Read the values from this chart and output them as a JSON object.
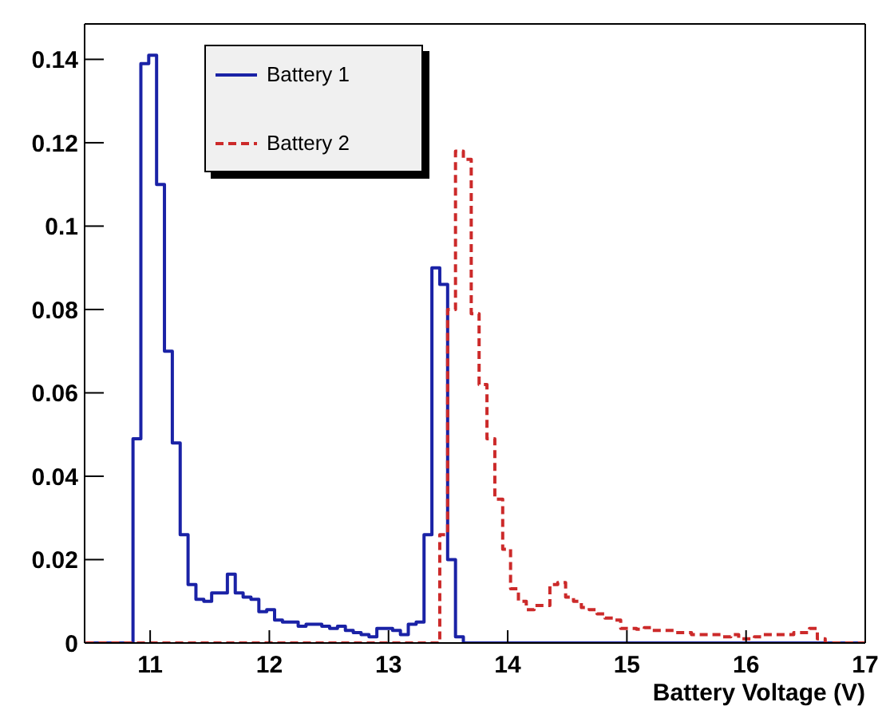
{
  "chart_data": {
    "type": "histogram",
    "xlabel": "Battery Voltage (V)",
    "bins": [
      10.46,
      10.526,
      10.592,
      10.658,
      10.724,
      10.79,
      10.856,
      10.922,
      10.988,
      11.054,
      11.12,
      11.186,
      11.252,
      11.318,
      11.384,
      11.45,
      11.516,
      11.582,
      11.648,
      11.714,
      11.78,
      11.846,
      11.912,
      11.978,
      12.044,
      12.11,
      12.176,
      12.242,
      12.308,
      12.374,
      12.44,
      12.506,
      12.572,
      12.638,
      12.704,
      12.77,
      12.836,
      12.902,
      12.968,
      13.034,
      13.1,
      13.166,
      13.232,
      13.298,
      13.364,
      13.43,
      13.496,
      13.562,
      13.628,
      13.694,
      13.76,
      13.826,
      13.892,
      13.958,
      14.024,
      14.09,
      14.156,
      14.222,
      14.288,
      14.354,
      14.42,
      14.486,
      14.552,
      14.618,
      14.684,
      14.75,
      14.816,
      14.882,
      14.948,
      15.014,
      15.08,
      15.146,
      15.212,
      15.278,
      15.344,
      15.41,
      15.476,
      15.542,
      15.608,
      15.674,
      15.74,
      15.806,
      15.872,
      15.938,
      16.004,
      16.07,
      16.136,
      16.202,
      16.268,
      16.334,
      16.4,
      16.466,
      16.532,
      16.598,
      16.664,
      16.73,
      16.796,
      16.862,
      16.928,
      16.994
    ],
    "series": [
      {
        "name": "Battery 1",
        "color": "#1a22a6",
        "line_style": "solid",
        "values": [
          0,
          0,
          0,
          0,
          0,
          0,
          0.049,
          0.139,
          0.141,
          0.11,
          0.07,
          0.048,
          0.026,
          0.014,
          0.0105,
          0.01,
          0.012,
          0.012,
          0.0165,
          0.012,
          0.011,
          0.0105,
          0.0075,
          0.008,
          0.0055,
          0.005,
          0.005,
          0.004,
          0.0045,
          0.0045,
          0.004,
          0.0035,
          0.004,
          0.003,
          0.0025,
          0.002,
          0.0015,
          0.0035,
          0.0035,
          0.003,
          0.002,
          0.0045,
          0.005,
          0.026,
          0.09,
          0.086,
          0.02,
          0.0015,
          0,
          0,
          0,
          0,
          0,
          0,
          0,
          0,
          0,
          0,
          0,
          0,
          0,
          0,
          0,
          0,
          0,
          0,
          0,
          0,
          0,
          0,
          0,
          0,
          0,
          0,
          0,
          0,
          0,
          0,
          0,
          0,
          0,
          0,
          0,
          0,
          0,
          0,
          0,
          0,
          0,
          0,
          0,
          0,
          0,
          0,
          0,
          0,
          0,
          0,
          0
        ]
      },
      {
        "name": "Battery 2",
        "color": "#cc2a2a",
        "line_style": "dashed",
        "values": [
          0,
          0,
          0,
          0,
          0,
          0,
          0,
          0,
          0,
          0,
          0,
          0,
          0,
          0,
          0,
          0,
          0,
          0,
          0,
          0,
          0,
          0,
          0,
          0,
          0,
          0,
          0,
          0,
          0,
          0,
          0,
          0,
          0,
          0,
          0,
          0,
          0,
          0,
          0,
          0,
          0,
          0,
          0,
          0,
          0,
          0.026,
          0.08,
          0.118,
          0.116,
          0.079,
          0.062,
          0.049,
          0.0345,
          0.0225,
          0.013,
          0.01,
          0.008,
          0.009,
          0.009,
          0.014,
          0.0145,
          0.011,
          0.01,
          0.0085,
          0.008,
          0.007,
          0.006,
          0.0055,
          0.0035,
          0.0035,
          0.0033,
          0.0037,
          0.003,
          0.003,
          0.003,
          0.0025,
          0.0025,
          0.002,
          0.002,
          0.002,
          0.002,
          0.0015,
          0.002,
          0.001,
          0.001,
          0.0015,
          0.002,
          0.002,
          0.002,
          0.002,
          0.0025,
          0.0025,
          0.0035,
          0.001,
          0,
          0,
          0,
          0,
          0
        ]
      }
    ],
    "xlim": [
      10.45,
      17
    ],
    "xticks": [
      11,
      12,
      13,
      14,
      15,
      16,
      17
    ],
    "ylim": [
      0,
      0.1485
    ],
    "yticks": [
      0,
      0.02,
      0.04,
      0.06,
      0.08,
      0.1,
      0.12,
      0.14
    ],
    "grid": false,
    "legend": "top left"
  }
}
